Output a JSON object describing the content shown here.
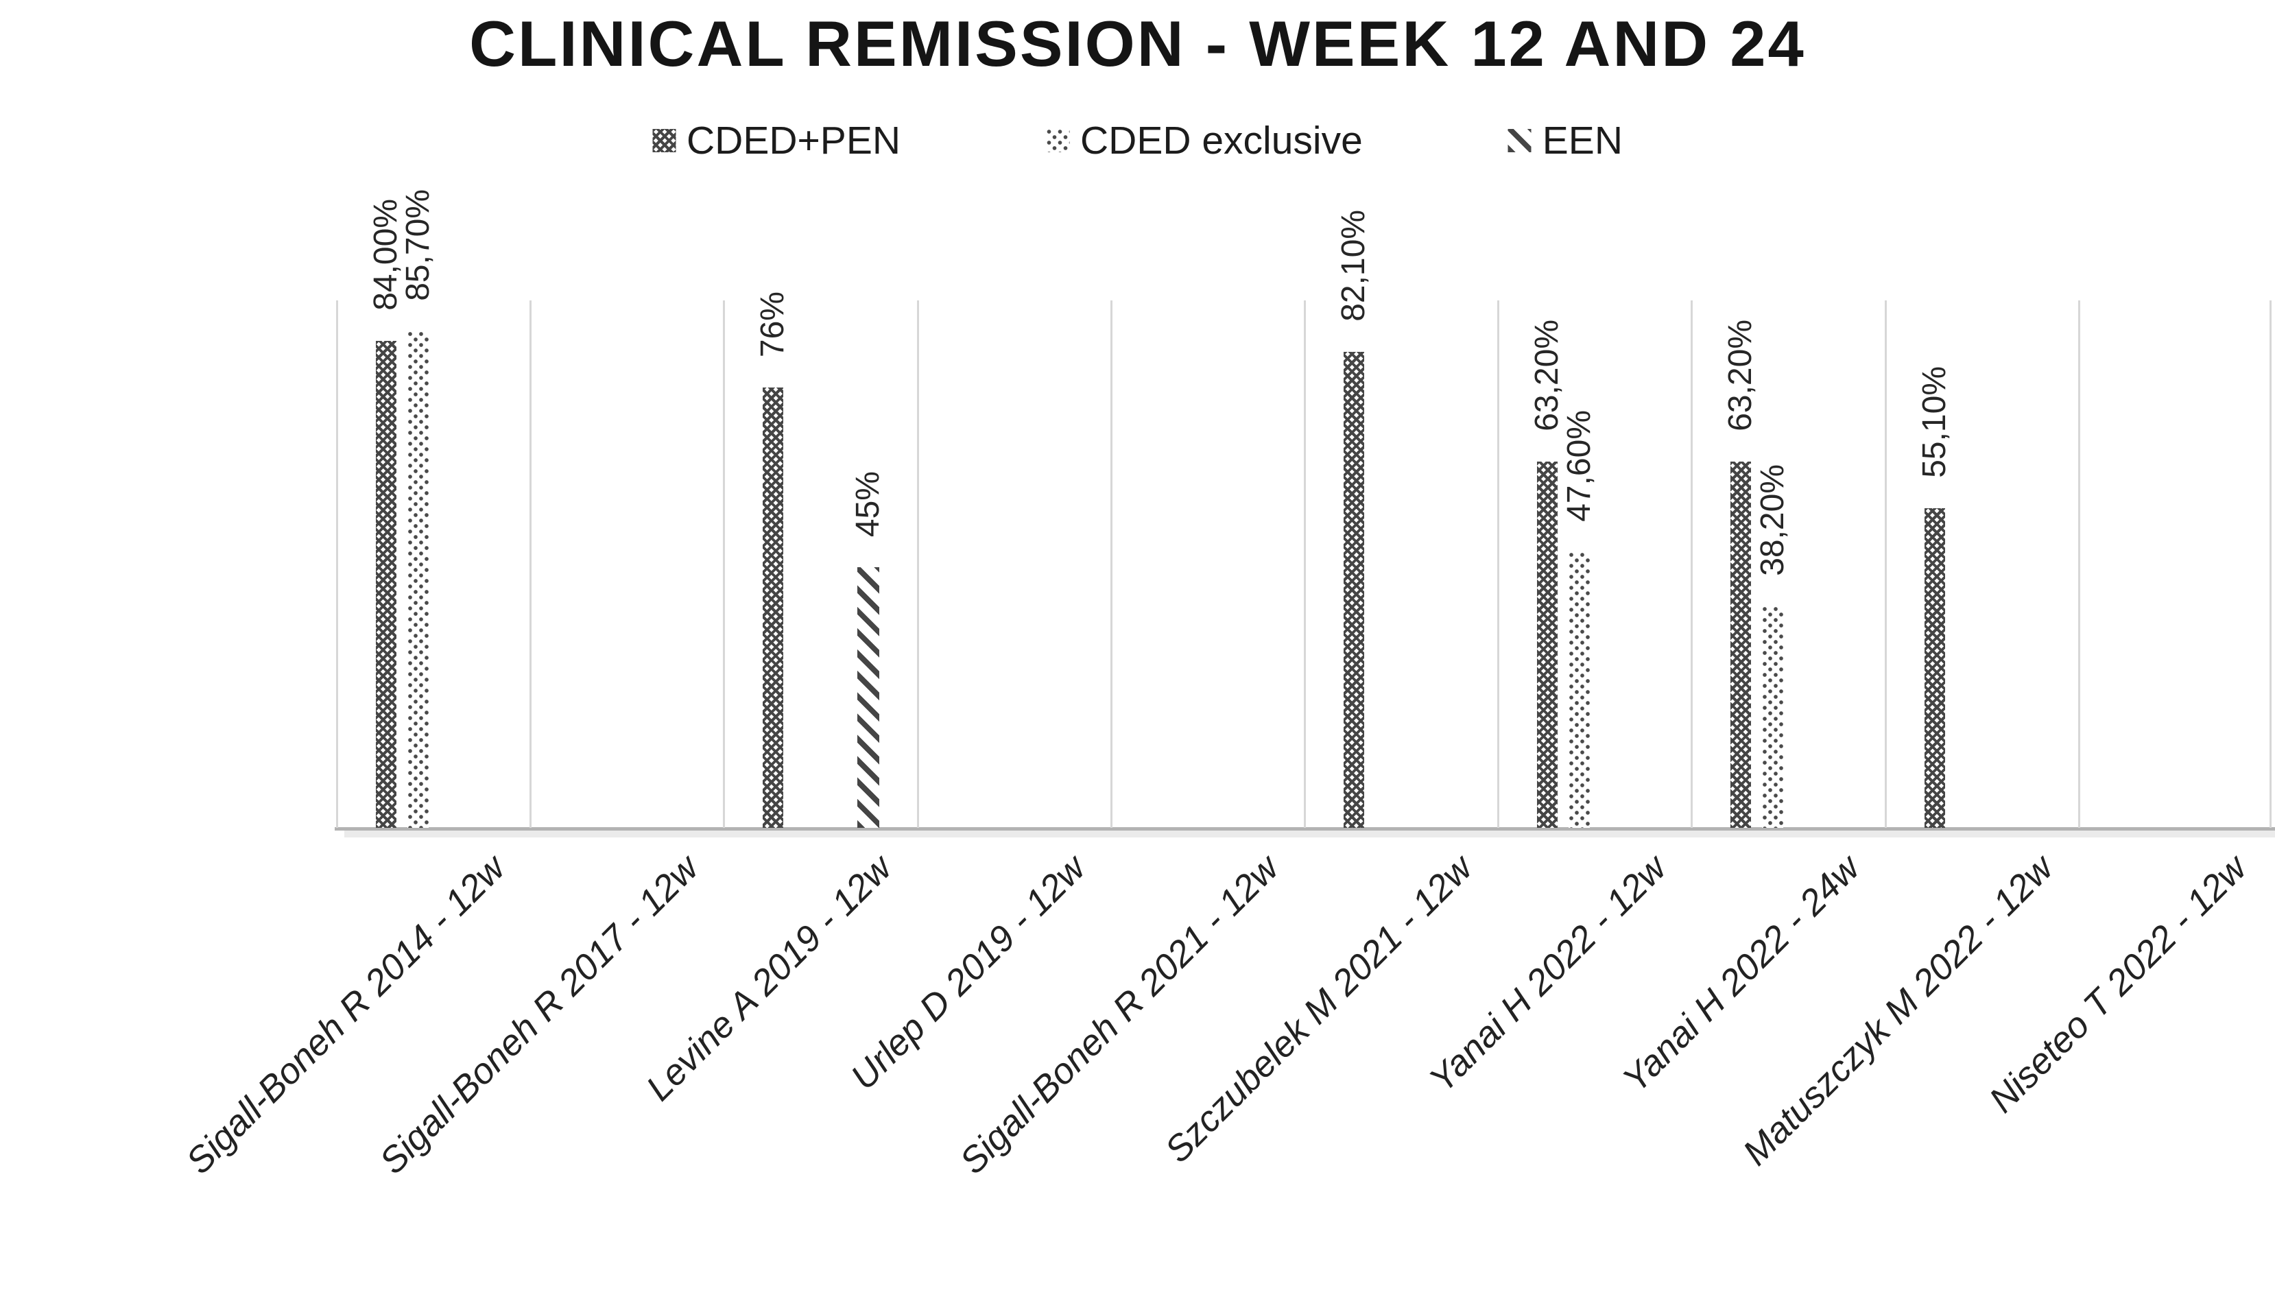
{
  "title": "CLINICAL REMISSION - WEEK 12 AND 24",
  "legend": {
    "items": [
      {
        "label": "CDED+PEN",
        "pattern": "crosshatch",
        "swatch_icon": "crosshatch-pattern-swatch"
      },
      {
        "label": "CDED exclusive",
        "pattern": "dots",
        "swatch_icon": "dotted-pattern-swatch"
      },
      {
        "label": "EEN",
        "pattern": "diagonal-stripes",
        "swatch_icon": "diagonal-stripe-pattern-swatch"
      }
    ]
  },
  "colors": {
    "pattern_ink": "#454545",
    "gridline": "#d7d7d7",
    "axis_line": "#b3b3b3",
    "text": "#222222",
    "background": "#ffffff"
  },
  "chart_data": {
    "type": "bar",
    "title": "CLINICAL REMISSION - WEEK 12 AND 24",
    "unit": "%",
    "ylim": [
      0,
      91
    ],
    "grid": "vertical category separators only",
    "legend_position": "top",
    "y_axis_visible": false,
    "categories": [
      "Sigall-Boneh R 2014 - 12w",
      "Sigall-Boneh R 2017 - 12w",
      "Levine A 2019 - 12w",
      "Urlep D 2019 - 12w",
      "Sigall-Boneh R 2021 - 12w",
      "Szczubelek M 2021 - 12w",
      "Yanai H 2022 - 12w",
      "Yanai H 2022 - 24w",
      "Matuszczyk M 2022 - 12w",
      "Niseteo T 2022 - 12w"
    ],
    "series": [
      {
        "name": "CDED+PEN",
        "pattern": "crosshatch",
        "values": [
          84.0,
          null,
          76,
          null,
          null,
          82.1,
          63.2,
          63.2,
          55.1,
          null
        ],
        "labels": [
          "84,00%",
          null,
          "76%",
          null,
          null,
          "82,10%",
          "63,20%",
          "63,20%",
          "55,10%",
          null
        ]
      },
      {
        "name": "CDED exclusive",
        "pattern": "dots",
        "values": [
          85.7,
          null,
          null,
          null,
          null,
          null,
          47.6,
          38.2,
          null,
          null
        ],
        "labels": [
          "85,70%",
          null,
          null,
          null,
          null,
          null,
          "47,60%",
          "38,20%",
          null,
          null
        ]
      },
      {
        "name": "EEN",
        "pattern": "diagonal-stripes",
        "values": [
          null,
          null,
          45,
          null,
          null,
          null,
          null,
          null,
          null,
          null
        ],
        "labels": [
          null,
          null,
          "45%",
          null,
          null,
          null,
          null,
          null,
          null,
          null
        ]
      }
    ]
  }
}
